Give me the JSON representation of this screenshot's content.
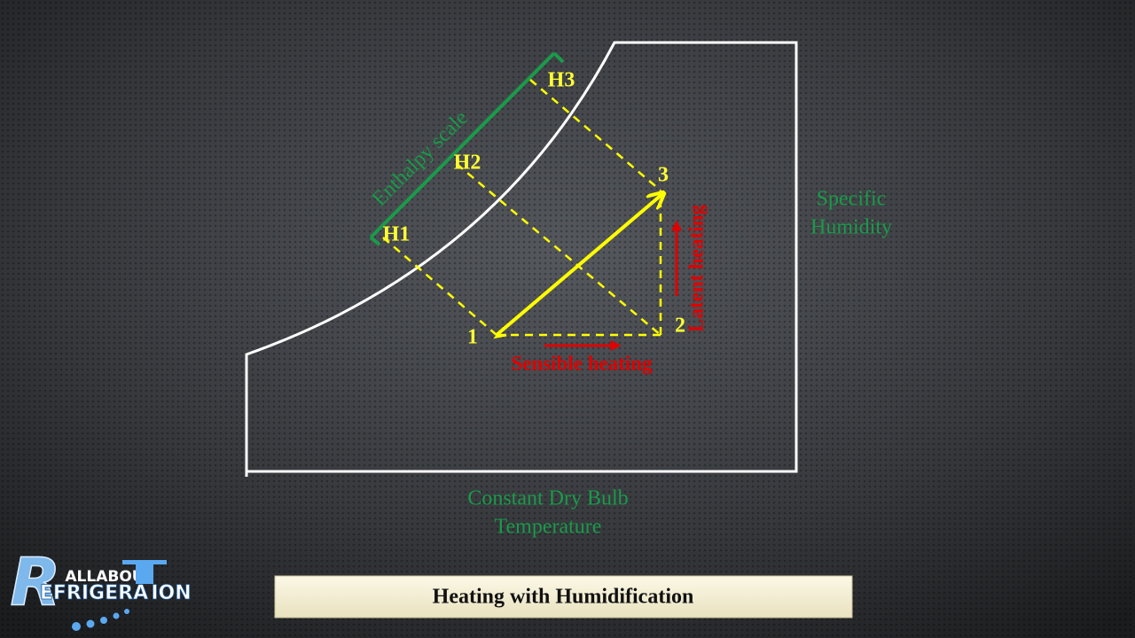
{
  "diagram": {
    "title": "Heating with Humidification",
    "enthalpy_scale": "Enthalpy scale",
    "enthalpy_marks": [
      "H1",
      "H2",
      "H3"
    ],
    "points": [
      "1",
      "2",
      "3"
    ],
    "sensible": "Sensible heating",
    "latent": "Latent heating",
    "y_axis": [
      "Specific",
      "Humidity"
    ],
    "x_axis": [
      "Constant Dry Bulb",
      "Temperature"
    ],
    "logo": {
      "top": "ALLABOU",
      "initial": "R",
      "word": "EFRIGERA",
      "end": "ION"
    }
  }
}
